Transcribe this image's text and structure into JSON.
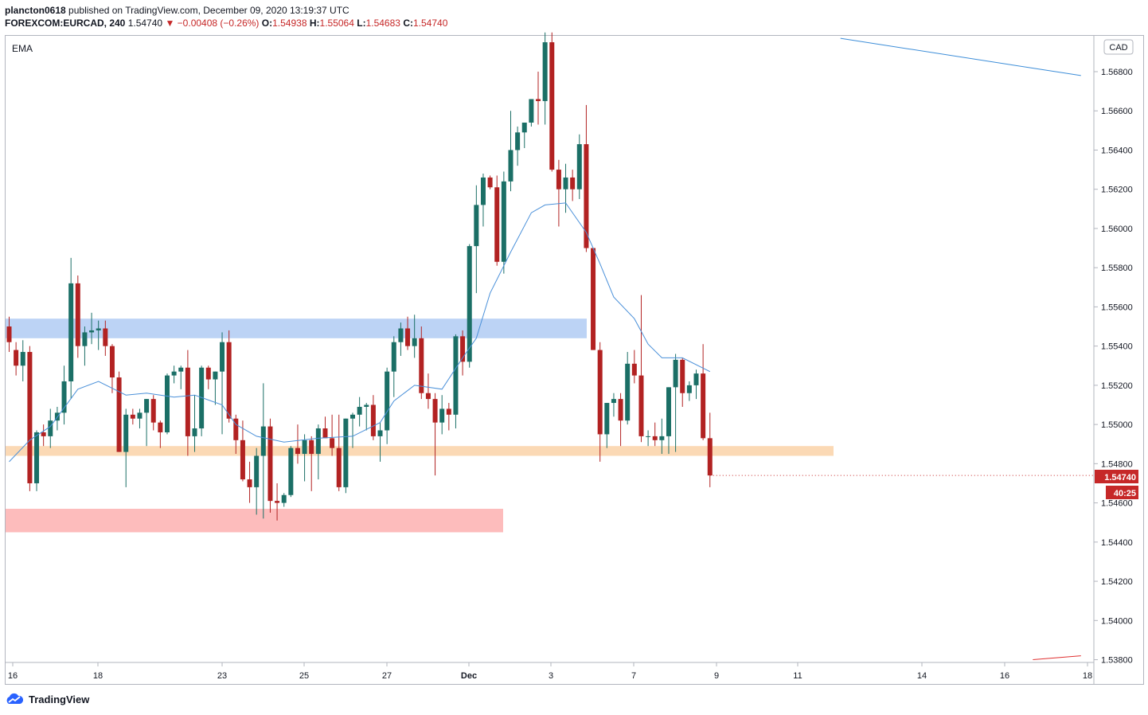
{
  "header": {
    "publisher": "plancton0618",
    "published_text": "published on TradingView.com, December 09, 2020 13:19:37 UTC",
    "symbol": "FOREXCOM:EURCAD, 240",
    "last": "1.54740",
    "change": "−0.00408 (−0.26%)",
    "o_label": "O:",
    "o": "1.54938",
    "h_label": "H:",
    "h": "1.55064",
    "l_label": "L:",
    "l": "1.54683",
    "c_label": "C:",
    "c": "1.54740"
  },
  "indicator_label": "EMA",
  "currency_badge": "CAD",
  "price_tag": "1.54740",
  "countdown_tag": "40:25",
  "footer": {
    "brand": "TradingView"
  },
  "colors": {
    "up": "#1b6f66",
    "down": "#b22222",
    "ema": "#4a90d9",
    "trend": "#3c8dd8"
  },
  "chart_data": {
    "type": "candlestick",
    "ylim": [
      1.538,
      1.5695
    ],
    "y_ticks": [
      "1.56800",
      "1.56600",
      "1.56400",
      "1.56200",
      "1.56000",
      "1.55800",
      "1.55600",
      "1.55400",
      "1.55200",
      "1.55000",
      "1.54800",
      "1.54600",
      "1.54400",
      "1.54200",
      "1.54000",
      "1.53800"
    ],
    "x_ticks": [
      "16",
      "18",
      "23",
      "25",
      "27",
      "Dec",
      "3",
      "7",
      "9",
      "11",
      "14",
      "16",
      "18"
    ],
    "zones": [
      {
        "name": "resistance-zone",
        "color": "#bcd3f5",
        "y_top": 1.5554,
        "y_bottom": 1.5544
      },
      {
        "name": "support-zone",
        "color": "#fbd9b5",
        "y_top": 1.5489,
        "y_bottom": 1.5484
      },
      {
        "name": "demand-zone",
        "color": "#fdbcbc",
        "y_top": 1.5457,
        "y_bottom": 1.5445
      }
    ],
    "candles": [
      [
        1.555,
        1.5555,
        1.5537,
        1.5542
      ],
      [
        1.5538,
        1.5542,
        1.5525,
        1.553
      ],
      [
        1.553,
        1.5543,
        1.5522,
        1.5537
      ],
      [
        1.5537,
        1.554,
        1.5466,
        1.547
      ],
      [
        1.547,
        1.5497,
        1.5466,
        1.5496
      ],
      [
        1.5496,
        1.55,
        1.5489,
        1.5494
      ],
      [
        1.5494,
        1.5508,
        1.5488,
        1.5502
      ],
      [
        1.5502,
        1.5509,
        1.5497,
        1.5506
      ],
      [
        1.5506,
        1.553,
        1.55,
        1.5522
      ],
      [
        1.5522,
        1.5585,
        1.5513,
        1.5572
      ],
      [
        1.5572,
        1.5576,
        1.5534,
        1.554
      ],
      [
        1.554,
        1.555,
        1.553,
        1.5547
      ],
      [
        1.5547,
        1.5557,
        1.5541,
        1.5548
      ],
      [
        1.5548,
        1.5553,
        1.5538,
        1.5549
      ],
      [
        1.5549,
        1.5553,
        1.5535,
        1.554
      ],
      [
        1.554,
        1.5541,
        1.5516,
        1.5524
      ],
      [
        1.5524,
        1.5527,
        1.5487,
        1.5486
      ],
      [
        1.5486,
        1.5508,
        1.5468,
        1.5505
      ],
      [
        1.5505,
        1.5508,
        1.55,
        1.5503
      ],
      [
        1.5503,
        1.5508,
        1.5498,
        1.5506
      ],
      [
        1.5506,
        1.551,
        1.5489,
        1.5513
      ],
      [
        1.5513,
        1.5515,
        1.5497,
        1.5501
      ],
      [
        1.5501,
        1.5502,
        1.5488,
        1.5496
      ],
      [
        1.5496,
        1.5526,
        1.5495,
        1.5525
      ],
      [
        1.5525,
        1.553,
        1.5521,
        1.5527
      ],
      [
        1.5527,
        1.553,
        1.5518,
        1.5529
      ],
      [
        1.5529,
        1.5538,
        1.5484,
        1.5494
      ],
      [
        1.5494,
        1.5515,
        1.5486,
        1.5498
      ],
      [
        1.5498,
        1.553,
        1.5494,
        1.5529
      ],
      [
        1.5529,
        1.553,
        1.5518,
        1.5523
      ],
      [
        1.5523,
        1.5527,
        1.551,
        1.5527
      ],
      [
        1.5527,
        1.5547,
        1.5495,
        1.5542
      ],
      [
        1.5542,
        1.5548,
        1.5501,
        1.5503
      ],
      [
        1.5503,
        1.5505,
        1.5485,
        1.5492
      ],
      [
        1.5492,
        1.5502,
        1.5471,
        1.5472
      ],
      [
        1.5472,
        1.5481,
        1.546,
        1.5468
      ],
      [
        1.5468,
        1.5488,
        1.5454,
        1.5484
      ],
      [
        1.5484,
        1.5521,
        1.5452,
        1.5499
      ],
      [
        1.5499,
        1.5503,
        1.5455,
        1.5461
      ],
      [
        1.5461,
        1.547,
        1.5451,
        1.546
      ],
      [
        1.546,
        1.5465,
        1.5458,
        1.5464
      ],
      [
        1.5464,
        1.5489,
        1.5463,
        1.5488
      ],
      [
        1.5488,
        1.55,
        1.548,
        1.5485
      ],
      [
        1.5485,
        1.5495,
        1.5471,
        1.5492
      ],
      [
        1.5492,
        1.5494,
        1.5466,
        1.5485
      ],
      [
        1.5485,
        1.55,
        1.5472,
        1.5498
      ],
      [
        1.5498,
        1.5504,
        1.5493,
        1.5493
      ],
      [
        1.5493,
        1.5505,
        1.5484,
        1.5488
      ],
      [
        1.5488,
        1.5505,
        1.5466,
        1.5468
      ],
      [
        1.5468,
        1.5503,
        1.5465,
        1.5503
      ],
      [
        1.5503,
        1.5506,
        1.5488,
        1.5505
      ],
      [
        1.5505,
        1.5514,
        1.5499,
        1.5509
      ],
      [
        1.5509,
        1.5511,
        1.5497,
        1.551
      ],
      [
        1.551,
        1.5515,
        1.5492,
        1.5494
      ],
      [
        1.5494,
        1.5501,
        1.5481,
        1.5497
      ],
      [
        1.5497,
        1.5529,
        1.549,
        1.5527
      ],
      [
        1.5527,
        1.5545,
        1.5514,
        1.5542
      ],
      [
        1.5542,
        1.5552,
        1.5535,
        1.5549
      ],
      [
        1.5549,
        1.5555,
        1.5538,
        1.554
      ],
      [
        1.554,
        1.5556,
        1.5534,
        1.5544
      ],
      [
        1.5544,
        1.555,
        1.5513,
        1.5516
      ],
      [
        1.5516,
        1.5526,
        1.5508,
        1.5513
      ],
      [
        1.5513,
        1.5516,
        1.5474,
        1.5501
      ],
      [
        1.5501,
        1.5515,
        1.5495,
        1.5508
      ],
      [
        1.5508,
        1.5511,
        1.5497,
        1.5505
      ],
      [
        1.5505,
        1.5546,
        1.5498,
        1.5545
      ],
      [
        1.5545,
        1.5548,
        1.5525,
        1.5532
      ],
      [
        1.5532,
        1.5592,
        1.5529,
        1.5591
      ],
      [
        1.5591,
        1.5622,
        1.5567,
        1.5612
      ],
      [
        1.5612,
        1.5628,
        1.5601,
        1.5626
      ],
      [
        1.5626,
        1.5627,
        1.562,
        1.5621
      ],
      [
        1.5621,
        1.5627,
        1.5581,
        1.5583
      ],
      [
        1.5583,
        1.5629,
        1.5577,
        1.5624
      ],
      [
        1.5624,
        1.566,
        1.5619,
        1.564
      ],
      [
        1.564,
        1.5652,
        1.5632,
        1.5649
      ],
      [
        1.5649,
        1.5653,
        1.5641,
        1.5654
      ],
      [
        1.5654,
        1.5666,
        1.5652,
        1.5666
      ],
      [
        1.5666,
        1.568,
        1.5653,
        1.5665
      ],
      [
        1.5665,
        1.57,
        1.5653,
        1.5695
      ],
      [
        1.5695,
        1.57,
        1.5629,
        1.563
      ],
      [
        1.563,
        1.5635,
        1.5601,
        1.562
      ],
      [
        1.562,
        1.5633,
        1.5608,
        1.5626
      ],
      [
        1.5626,
        1.563,
        1.5614,
        1.562
      ],
      [
        1.562,
        1.5648,
        1.5615,
        1.5643
      ],
      [
        1.5643,
        1.5663,
        1.5588,
        1.559
      ],
      [
        1.559,
        1.5589,
        1.5538,
        1.5538
      ],
      [
        1.5538,
        1.5542,
        1.5481,
        1.5495
      ],
      [
        1.5495,
        1.5511,
        1.5488,
        1.5511
      ],
      [
        1.5511,
        1.5516,
        1.5504,
        1.5513
      ],
      [
        1.5513,
        1.5516,
        1.5489,
        1.5502
      ],
      [
        1.5502,
        1.5537,
        1.55,
        1.5531
      ],
      [
        1.5531,
        1.5538,
        1.5521,
        1.5525
      ],
      [
        1.5525,
        1.5566,
        1.5491,
        1.5494
      ],
      [
        1.5494,
        1.5497,
        1.5489,
        1.5494
      ],
      [
        1.5494,
        1.5501,
        1.5489,
        1.5492
      ],
      [
        1.5492,
        1.5503,
        1.5485,
        1.5494
      ],
      [
        1.5494,
        1.5518,
        1.5485,
        1.5519
      ],
      [
        1.5519,
        1.5536,
        1.5486,
        1.5533
      ],
      [
        1.5533,
        1.5534,
        1.5509,
        1.5516
      ],
      [
        1.5516,
        1.5522,
        1.5512,
        1.552
      ],
      [
        1.552,
        1.5528,
        1.5513,
        1.5526
      ],
      [
        1.5526,
        1.5541,
        1.5492,
        1.5493
      ],
      [
        1.5493,
        1.5506,
        1.5468,
        1.5474
      ]
    ],
    "ema_points": [
      [
        0,
        1.5481
      ],
      [
        3,
        1.5492
      ],
      [
        6,
        1.5499
      ],
      [
        10,
        1.5518
      ],
      [
        13,
        1.5522
      ],
      [
        17,
        1.5515
      ],
      [
        20,
        1.5516
      ],
      [
        24,
        1.5514
      ],
      [
        27,
        1.5515
      ],
      [
        31,
        1.551
      ],
      [
        33,
        1.55
      ],
      [
        36,
        1.5494
      ],
      [
        40,
        1.5491
      ],
      [
        45,
        1.5493
      ],
      [
        50,
        1.5494
      ],
      [
        54,
        1.5501
      ],
      [
        56,
        1.5512
      ],
      [
        59,
        1.552
      ],
      [
        63,
        1.5518
      ],
      [
        66,
        1.5534
      ],
      [
        68,
        1.5544
      ],
      [
        70,
        1.5567
      ],
      [
        73,
        1.5588
      ],
      [
        76,
        1.5608
      ],
      [
        78,
        1.5612
      ],
      [
        81,
        1.5613
      ],
      [
        84,
        1.5598
      ],
      [
        86,
        1.5582
      ],
      [
        88,
        1.5565
      ],
      [
        91,
        1.5554
      ],
      [
        93,
        1.5541
      ],
      [
        95,
        1.5534
      ],
      [
        98,
        1.5534
      ],
      [
        102,
        1.5527
      ]
    ],
    "trend_lines": [
      {
        "name": "descending-trendline",
        "color": "#3c8dd8",
        "x0": 121.0,
        "y0": 1.5697,
        "x1": 156.0,
        "y1": 1.5678
      },
      {
        "name": "lower-red-line",
        "color": "#e03030",
        "x0": 149.0,
        "y0": 1.538,
        "x1": 156.0,
        "y1": 1.5382
      }
    ]
  }
}
